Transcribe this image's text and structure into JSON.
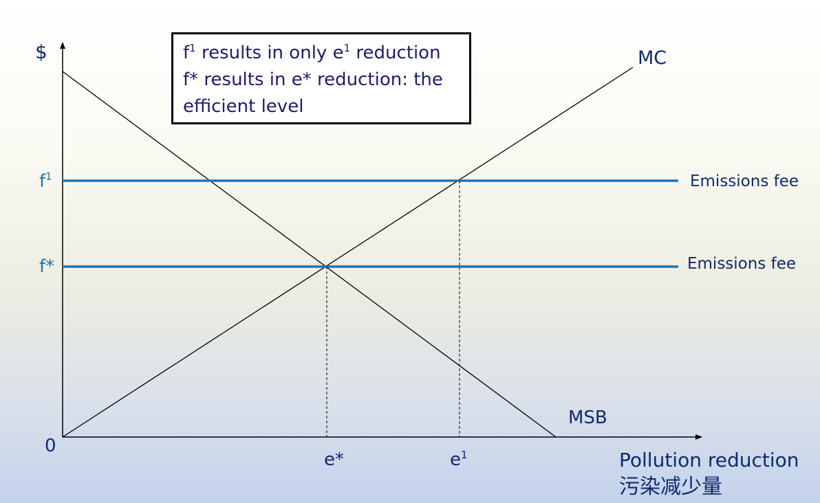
{
  "axis": {
    "y_label": "$",
    "origin_label": "0",
    "x_label": "Pollution reduction",
    "x_label_cn": "污染减少量"
  },
  "curves": {
    "mc_label": "MC",
    "msb_label": "MSB"
  },
  "fees": {
    "high": {
      "label": "f",
      "sup": "1",
      "name": "Emissions fee"
    },
    "efficient": {
      "label": "f*",
      "name": "Emissions fee"
    }
  },
  "reductions": {
    "efficient": {
      "label": "e*"
    },
    "high": {
      "label": "e",
      "sup": "1"
    }
  },
  "callout": {
    "line1_a": "f",
    "line1_sup1": "1",
    "line1_b": " results in only e",
    "line1_sup2": "1",
    "line1_c": " reduction",
    "line2": "f* results in e* reduction: the",
    "line3": "efficient level"
  },
  "colors": {
    "fee_line": "#1f73b7",
    "curve": "#000000",
    "label_text": "#0f2a6e"
  }
}
